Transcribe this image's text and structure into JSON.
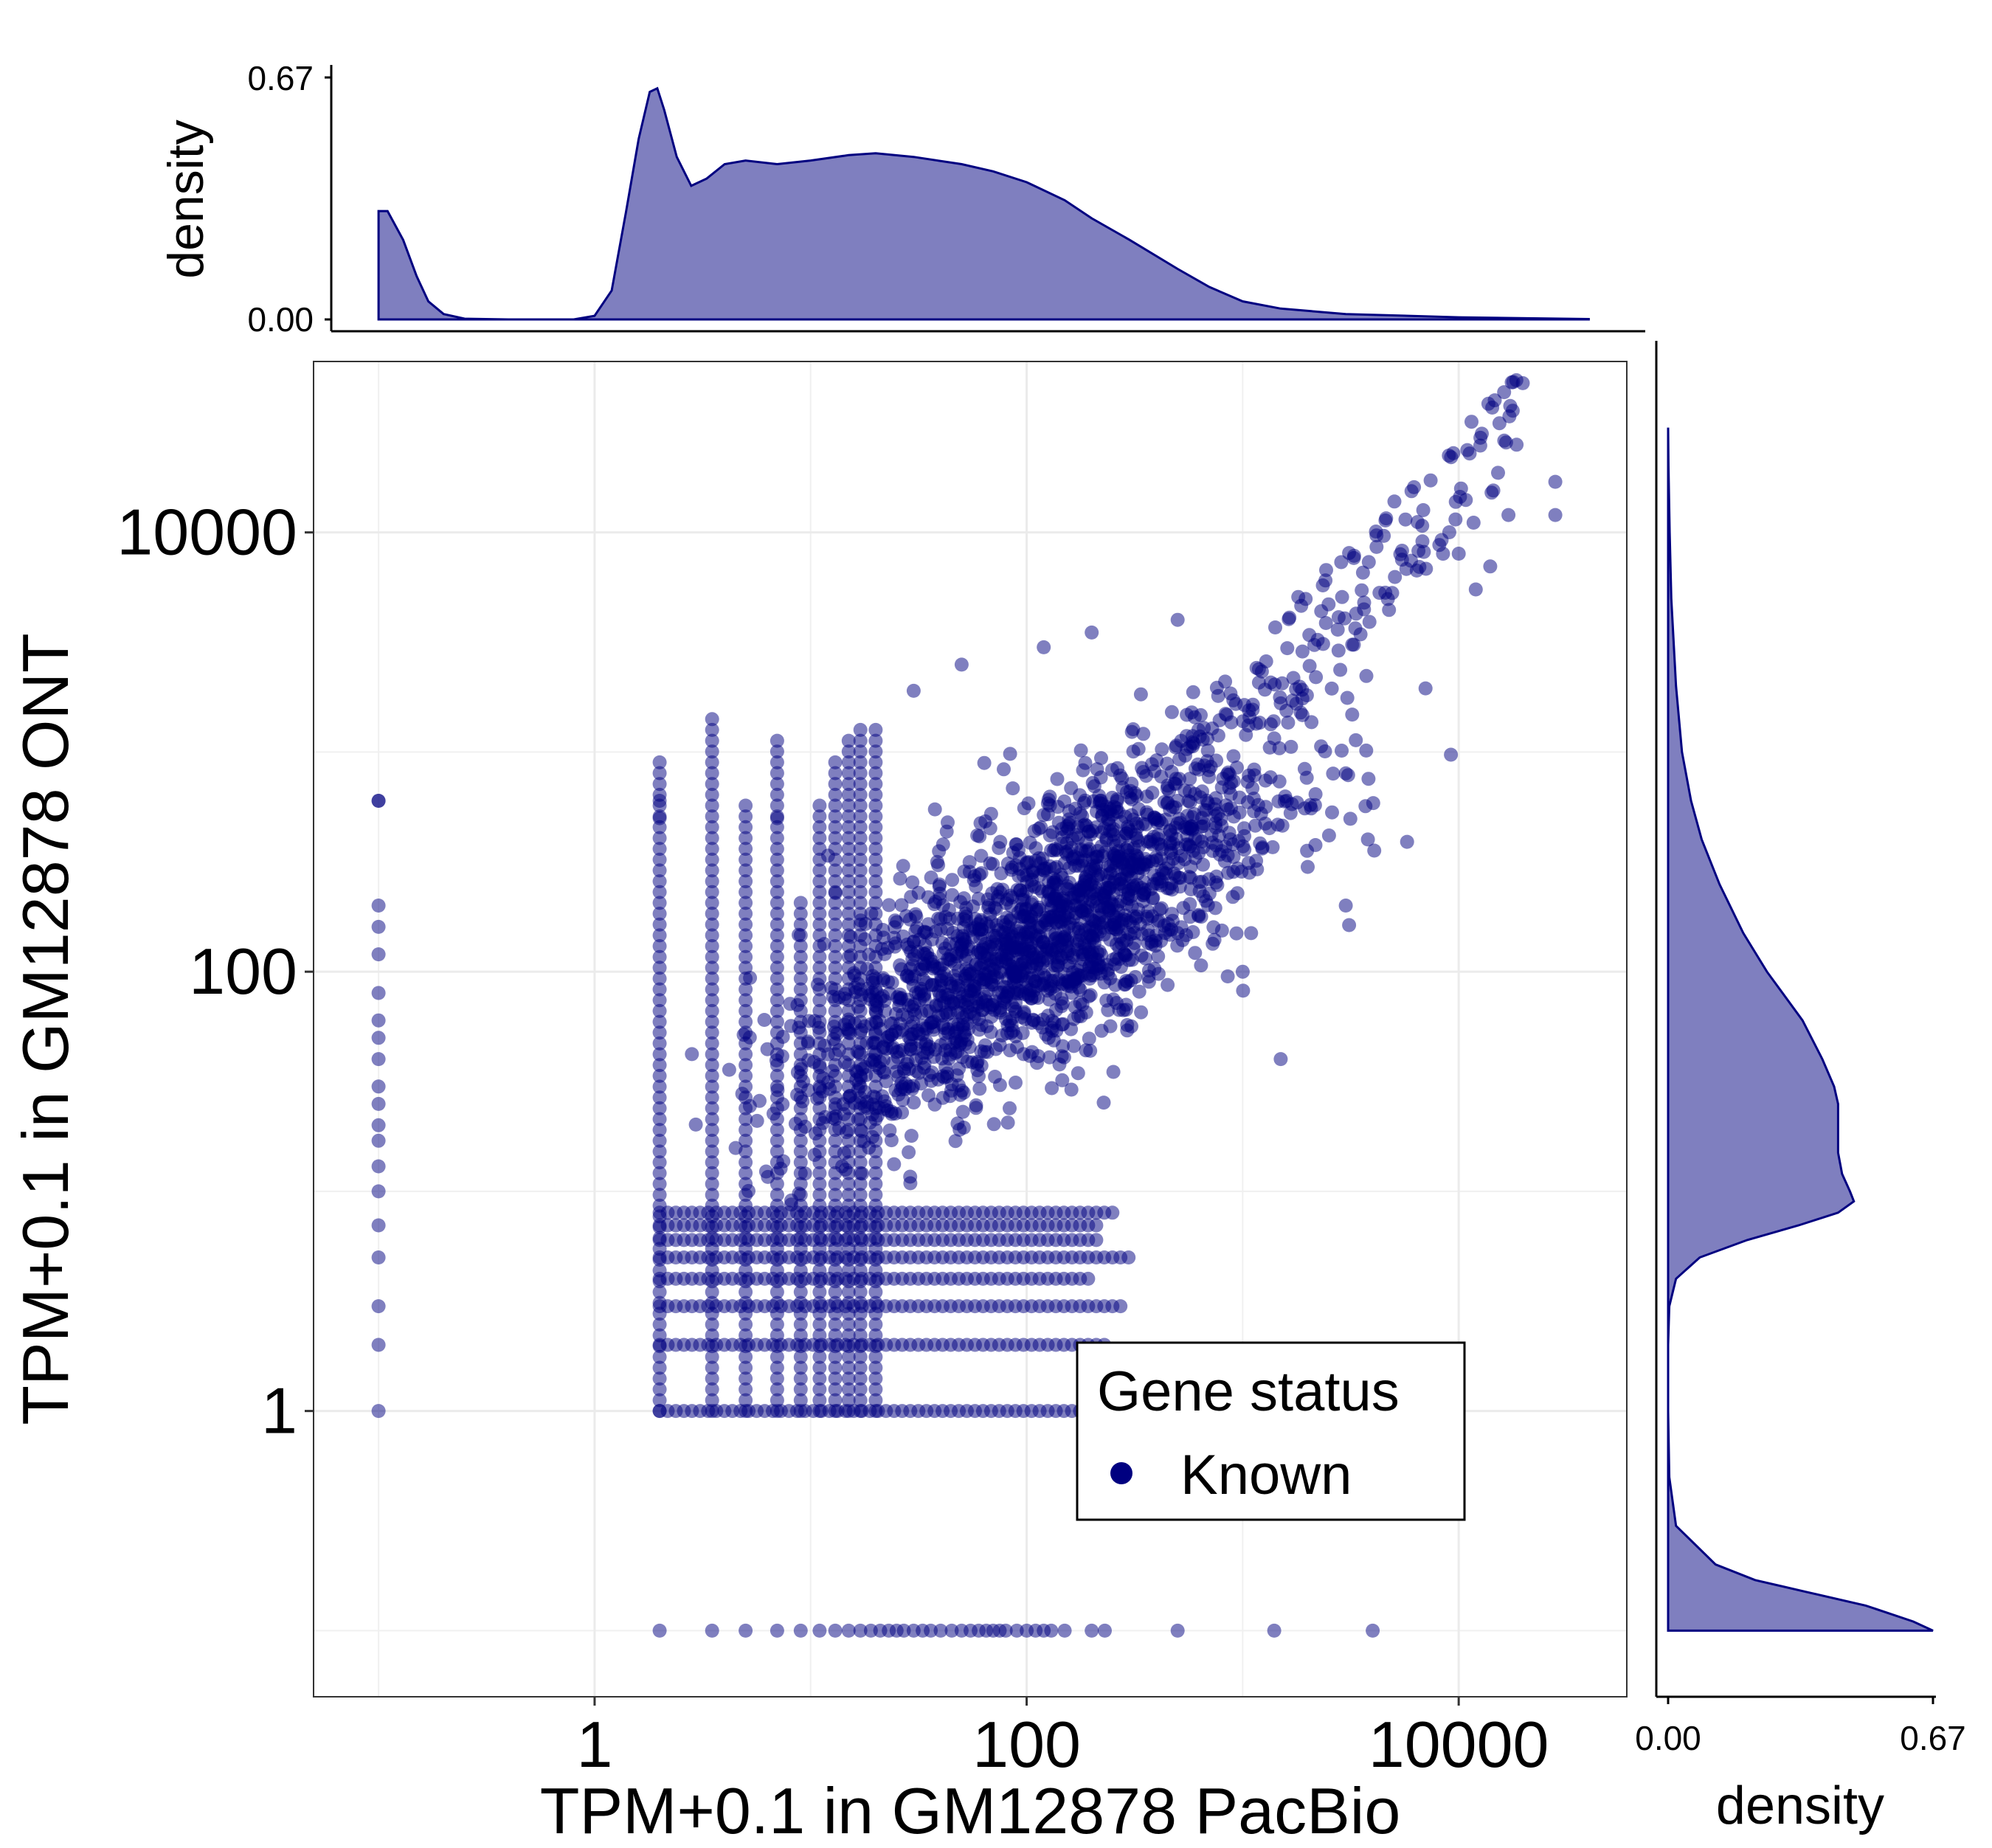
{
  "chart_data": {
    "type": "scatter",
    "x_scale": "log10",
    "y_scale": "log10",
    "xlabel": "TPM+0.1 in GM12878 PacBio",
    "ylabel": "TPM+0.1 in GM12878 ONT",
    "x_ticks": [
      "1",
      "100",
      "10000"
    ],
    "y_ticks": [
      "1",
      "100",
      "10000"
    ],
    "xlim": [
      0.05,
      60000
    ],
    "ylim": [
      0.05,
      60000
    ],
    "grid": true,
    "point_color": "#000080",
    "point_opacity": 0.5,
    "legend": {
      "title": "Gene status",
      "items": [
        "Known"
      ],
      "position": "bottom-right"
    },
    "seed": 20240607,
    "clusters": [
      {
        "name": "x_floor_stack",
        "x": 0.1,
        "y_levels": [
          1,
          2,
          3,
          5,
          7,
          10,
          13,
          17,
          20,
          25,
          30,
          40,
          50,
          60,
          80,
          120,
          160,
          200,
          600
        ]
      },
      {
        "name": "y_floor_row",
        "y": 0.1,
        "x_levels": [
          2,
          3.5,
          5,
          7,
          9,
          11,
          13,
          15,
          17,
          19,
          21,
          23,
          25,
          27,
          30,
          33,
          36,
          40,
          45,
          50,
          55,
          60,
          65,
          70,
          75,
          80,
          90,
          100,
          110,
          120,
          130,
          150,
          200,
          230,
          500,
          1400,
          4000
        ]
      },
      {
        "name": "y_level_rows",
        "y_levels": [
          1,
          2,
          3,
          4,
          5,
          6,
          7,
          8
        ],
        "x_start": 2,
        "x_end_range": [
          150,
          300
        ]
      },
      {
        "name": "x_level_columns",
        "x_levels": [
          2,
          3.5,
          5,
          7,
          9,
          11,
          13,
          15,
          17,
          20
        ],
        "y_start": 1,
        "y_end_range": [
          200,
          1500
        ]
      },
      {
        "name": "main_body",
        "log10_x_mean": 2.05,
        "log10_y_mean": 2.15,
        "log10_sd_x": 0.55,
        "log10_sd_y": 0.42,
        "correlation": 0.72,
        "count": 1900
      },
      {
        "name": "upper_tail",
        "log10_x_range": [
          2.2,
          4.3
        ],
        "offset_from_diagonal": [
          0.1,
          0.6
        ],
        "count": 200
      }
    ],
    "outliers": [
      {
        "x": 28000,
        "y": 17000
      },
      {
        "x": 28000,
        "y": 12000
      },
      {
        "x": 17000,
        "y": 12000
      },
      {
        "x": 10000,
        "y": 8000
      },
      {
        "x": 14000,
        "y": 7000
      },
      {
        "x": 12000,
        "y": 5500
      },
      {
        "x": 500,
        "y": 600
      },
      {
        "x": 1600,
        "y": 600
      },
      {
        "x": 3800,
        "y": 400
      },
      {
        "x": 1500,
        "y": 40
      },
      {
        "x": 1000,
        "y": 100
      },
      {
        "x": 500,
        "y": 150
      },
      {
        "x": 3000,
        "y": 200
      },
      {
        "x": 2000,
        "y": 300
      },
      {
        "x": 3000,
        "y": 800
      },
      {
        "x": 50,
        "y": 2500
      },
      {
        "x": 30,
        "y": 1900
      },
      {
        "x": 0.1,
        "y": 600
      },
      {
        "x": 2,
        "y": 600
      },
      {
        "x": 2,
        "y": 500
      },
      {
        "x": 7,
        "y": 500
      },
      {
        "x": 200,
        "y": 3500
      },
      {
        "x": 500,
        "y": 4000
      },
      {
        "x": 120,
        "y": 3000
      }
    ],
    "marginal_x": {
      "ylabel": "density",
      "y_ticks": [
        "0.00",
        "0.67"
      ],
      "ymax": 0.67,
      "points": [
        [
          0.1,
          0.3
        ],
        [
          0.11,
          0.3
        ],
        [
          0.13,
          0.22
        ],
        [
          0.15,
          0.12
        ],
        [
          0.17,
          0.05
        ],
        [
          0.2,
          0.015
        ],
        [
          0.25,
          0.002
        ],
        [
          0.4,
          0.0
        ],
        [
          0.8,
          0.0
        ],
        [
          1.0,
          0.01
        ],
        [
          1.2,
          0.08
        ],
        [
          1.4,
          0.3
        ],
        [
          1.6,
          0.5
        ],
        [
          1.8,
          0.63
        ],
        [
          1.95,
          0.64
        ],
        [
          2.1,
          0.58
        ],
        [
          2.4,
          0.45
        ],
        [
          2.8,
          0.37
        ],
        [
          3.3,
          0.39
        ],
        [
          4,
          0.43
        ],
        [
          5,
          0.44
        ],
        [
          7,
          0.43
        ],
        [
          10,
          0.44
        ],
        [
          15,
          0.455
        ],
        [
          20,
          0.46
        ],
        [
          30,
          0.45
        ],
        [
          50,
          0.43
        ],
        [
          70,
          0.41
        ],
        [
          100,
          0.38
        ],
        [
          150,
          0.33
        ],
        [
          200,
          0.28
        ],
        [
          300,
          0.22
        ],
        [
          500,
          0.14
        ],
        [
          700,
          0.09
        ],
        [
          1000,
          0.05
        ],
        [
          1500,
          0.03
        ],
        [
          3000,
          0.015
        ],
        [
          10000,
          0.006
        ],
        [
          40000,
          0.001
        ]
      ]
    },
    "marginal_y": {
      "xlabel": "density",
      "x_ticks": [
        "0.00",
        "0.67"
      ],
      "xmax": 0.67,
      "points": [
        [
          0.1,
          0.67
        ],
        [
          0.11,
          0.62
        ],
        [
          0.13,
          0.5
        ],
        [
          0.15,
          0.35
        ],
        [
          0.17,
          0.22
        ],
        [
          0.2,
          0.12
        ],
        [
          0.3,
          0.02
        ],
        [
          0.5,
          0.003
        ],
        [
          1,
          0.0
        ],
        [
          2,
          0.0
        ],
        [
          3,
          0.003
        ],
        [
          4,
          0.02
        ],
        [
          5,
          0.08
        ],
        [
          6,
          0.2
        ],
        [
          7,
          0.33
        ],
        [
          8,
          0.43
        ],
        [
          9,
          0.47
        ],
        [
          10,
          0.46
        ],
        [
          12,
          0.44
        ],
        [
          15,
          0.43
        ],
        [
          20,
          0.43
        ],
        [
          25,
          0.43
        ],
        [
          30,
          0.42
        ],
        [
          40,
          0.39
        ],
        [
          60,
          0.34
        ],
        [
          100,
          0.25
        ],
        [
          150,
          0.19
        ],
        [
          250,
          0.13
        ],
        [
          400,
          0.085
        ],
        [
          600,
          0.058
        ],
        [
          1000,
          0.035
        ],
        [
          2000,
          0.02
        ],
        [
          5000,
          0.008
        ],
        [
          10000,
          0.004
        ],
        [
          20000,
          0.001
        ],
        [
          30000,
          0.0
        ]
      ]
    }
  }
}
